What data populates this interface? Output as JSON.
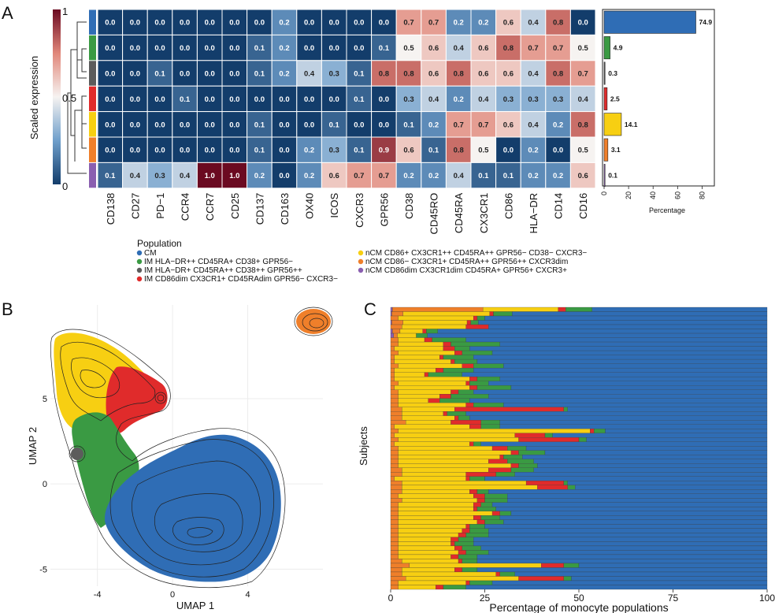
{
  "colors": {
    "CM": "#2f6db5",
    "IM_HLADR_CD45RA": "#3a9a43",
    "IM_HLADR_CD38": "#5c5c5c",
    "IM_CD86dim": "#e02b2b",
    "nCM_CD86": "#f7cf12",
    "nCM_CD86neg": "#ef7f2a",
    "nCM_CD86dim": "#8a5fb0",
    "ramp_low": "#133d6b",
    "ramp_mid": "#f6f3f1",
    "ramp_high": "#6b0a21"
  },
  "panels": {
    "a": "A",
    "b": "B",
    "c": "C"
  },
  "chart_data": [
    {
      "type": "heatmap",
      "title": "",
      "colorbar_label": "Scaled expression",
      "colorbar_ticks": [
        "1",
        "0.5",
        "0"
      ],
      "markers": [
        "CD138",
        "CD27",
        "PD−1",
        "CCR4",
        "CCR7",
        "CD25",
        "CD137",
        "CD163",
        "OX40",
        "ICOS",
        "CXCR3",
        "GPR56",
        "CD38",
        "CD45RO",
        "CD45RA",
        "CX3CR1",
        "CD86",
        "HLA−DR",
        "CD14",
        "CD16"
      ],
      "row_populations": [
        "CM",
        "IM_HLADR_CD45RA",
        "IM_HLADR_CD38",
        "IM_CD86dim",
        "nCM_CD86",
        "nCM_CD86neg",
        "nCM_CD86dim"
      ],
      "values": [
        [
          0.0,
          0.0,
          0.0,
          0.0,
          0.0,
          0.0,
          0.0,
          0.2,
          0.0,
          0.0,
          0.0,
          0.0,
          0.7,
          0.7,
          0.2,
          0.2,
          0.6,
          0.4,
          0.8,
          0.0
        ],
        [
          0.0,
          0.0,
          0.0,
          0.0,
          0.0,
          0.0,
          0.1,
          0.2,
          0.0,
          0.0,
          0.0,
          0.1,
          0.5,
          0.6,
          0.4,
          0.6,
          0.8,
          0.7,
          0.7,
          0.5
        ],
        [
          0.0,
          0.0,
          0.1,
          0.0,
          0.0,
          0.0,
          0.1,
          0.2,
          0.4,
          0.3,
          0.1,
          0.8,
          0.8,
          0.6,
          0.8,
          0.6,
          0.6,
          0.4,
          0.8,
          0.7
        ],
        [
          0.0,
          0.0,
          0.0,
          0.1,
          0.0,
          0.0,
          0.0,
          0.0,
          0.0,
          0.0,
          0.1,
          0.0,
          0.3,
          0.4,
          0.2,
          0.4,
          0.3,
          0.3,
          0.3,
          0.4
        ],
        [
          0.0,
          0.0,
          0.0,
          0.0,
          0.0,
          0.0,
          0.1,
          0.0,
          0.0,
          0.1,
          0.0,
          0.0,
          0.1,
          0.2,
          0.7,
          0.7,
          0.6,
          0.4,
          0.2,
          0.8
        ],
        [
          0.0,
          0.0,
          0.0,
          0.0,
          0.0,
          0.0,
          0.1,
          0.0,
          0.2,
          0.3,
          0.1,
          0.9,
          0.6,
          0.1,
          0.8,
          0.5,
          0.0,
          0.2,
          0.0,
          0.5
        ],
        [
          0.1,
          0.4,
          0.3,
          0.4,
          1.0,
          1.0,
          0.2,
          0.0,
          0.2,
          0.6,
          0.7,
          0.7,
          0.2,
          0.2,
          0.4,
          0.1,
          0.1,
          0.2,
          0.2,
          0.6
        ]
      ],
      "bar_values": [
        74.9,
        4.9,
        0.3,
        2.5,
        14.1,
        3.1,
        0.1
      ],
      "bar_value_labels": [
        "74.9",
        "4.9",
        "0.3",
        "2.5",
        "14.1",
        "3.1",
        "0.1"
      ],
      "bar_xlabel": "Percentage",
      "bar_xlim": [
        0,
        90
      ],
      "bar_ticks": [
        "0",
        "20",
        "40",
        "60",
        "80"
      ]
    },
    {
      "type": "scatter",
      "xlabel": "UMAP 1",
      "ylabel": "UMAP 2",
      "xlim": [
        -6.5,
        8.0
      ],
      "ylim": [
        -6.0,
        10.5
      ],
      "xticks": [
        "-4",
        "0",
        "4"
      ],
      "yticks": [
        "5",
        "0",
        "-5"
      ],
      "grid": true,
      "note": "density contours over cells coloured by population"
    },
    {
      "type": "bar",
      "orientation": "horizontal-stacked",
      "xlabel": "Percentage of monocyte populations",
      "ylabel": "Subjects",
      "xlim": [
        0,
        100
      ],
      "xticks": [
        "0",
        "25",
        "50",
        "75",
        "100"
      ],
      "series_order": [
        "nCM_CD86dim",
        "nCM_CD86neg",
        "nCM_CD86",
        "IM_CD86dim",
        "IM_HLADR_CD38",
        "IM_HLADR_CD45RA",
        "CM"
      ],
      "subjects": [
        [
          0.5,
          24,
          20,
          2,
          0,
          7
        ],
        [
          0.3,
          3,
          23,
          1,
          0,
          5
        ],
        [
          0,
          2,
          20,
          1,
          0,
          2
        ],
        [
          0.3,
          3,
          17,
          1,
          0,
          2
        ],
        [
          0,
          3,
          17,
          6,
          0,
          0
        ],
        [
          0.5,
          2,
          6,
          1,
          0,
          3
        ],
        [
          0.8,
          1,
          5,
          0,
          0,
          3
        ],
        [
          0,
          2,
          7,
          2,
          0,
          9
        ],
        [
          0,
          2,
          12,
          2,
          0,
          13
        ],
        [
          0,
          1,
          13,
          3,
          0,
          4
        ],
        [
          0,
          2,
          15,
          2,
          0,
          8
        ],
        [
          0,
          1,
          12,
          1,
          0,
          8
        ],
        [
          0,
          1,
          15,
          1,
          0,
          6
        ],
        [
          0,
          2,
          17,
          3,
          0,
          8
        ],
        [
          0,
          1,
          11,
          2,
          0,
          8
        ],
        [
          0,
          1,
          8,
          1,
          0,
          9
        ],
        [
          0,
          1,
          20,
          2,
          0,
          6
        ],
        [
          0,
          2,
          18,
          1,
          0,
          5
        ],
        [
          0,
          1,
          20,
          2,
          0,
          9
        ],
        [
          0,
          2,
          14,
          2,
          0,
          4
        ],
        [
          0,
          2,
          11,
          3,
          0,
          10
        ],
        [
          0,
          2,
          8,
          3,
          0,
          8
        ],
        [
          0,
          2,
          18,
          2,
          0,
          8
        ],
        [
          0,
          3,
          14,
          29,
          0,
          1
        ],
        [
          0,
          3,
          11,
          1,
          0,
          5
        ],
        [
          0,
          3,
          14,
          1,
          0,
          3
        ],
        [
          0,
          4,
          12,
          8,
          0,
          5
        ],
        [
          0,
          1,
          20,
          3,
          0,
          5
        ],
        [
          0,
          2,
          51,
          1,
          0,
          3
        ],
        [
          0,
          1,
          32,
          8,
          0,
          2
        ],
        [
          0,
          2,
          32,
          16,
          0,
          2
        ],
        [
          0,
          1,
          20,
          1,
          0,
          2
        ],
        [
          0,
          2,
          25,
          4,
          0,
          5
        ],
        [
          0,
          2,
          30,
          2,
          0,
          7
        ],
        [
          0,
          2,
          27,
          1,
          0,
          5
        ],
        [
          0,
          2,
          24,
          5,
          0,
          7
        ],
        [
          0,
          2,
          30,
          2,
          0,
          5
        ],
        [
          0,
          3,
          23,
          6,
          0,
          6
        ],
        [
          0,
          3,
          17,
          8,
          0,
          5
        ],
        [
          0,
          1,
          19,
          1,
          0,
          4
        ],
        [
          0,
          3,
          33,
          10,
          0,
          1
        ],
        [
          0,
          3,
          36,
          8,
          0,
          2
        ],
        [
          0,
          3,
          18,
          2,
          0,
          3
        ],
        [
          0,
          2,
          20,
          3,
          0,
          6
        ],
        [
          0,
          3,
          20,
          2,
          0,
          6
        ],
        [
          0,
          2,
          20,
          2,
          0,
          3
        ],
        [
          0,
          2,
          20,
          1,
          0,
          5
        ],
        [
          0,
          2,
          25,
          2,
          0,
          3
        ],
        [
          0,
          2,
          20,
          2,
          0,
          5
        ],
        [
          0,
          2,
          21,
          2,
          0,
          5
        ],
        [
          0,
          2,
          18,
          1,
          0,
          4
        ],
        [
          0,
          2,
          17,
          2,
          0,
          5
        ],
        [
          0,
          2,
          16,
          2,
          0,
          6
        ],
        [
          0,
          2,
          14,
          2,
          0,
          4
        ],
        [
          0,
          2,
          14,
          1,
          0,
          5
        ],
        [
          0,
          2,
          15,
          2,
          0,
          5
        ],
        [
          0,
          2,
          16,
          2,
          0,
          6
        ],
        [
          0,
          2,
          14,
          2,
          0,
          5
        ],
        [
          0,
          3,
          15,
          1,
          0,
          4
        ],
        [
          0,
          5,
          35,
          6,
          0,
          4
        ],
        [
          0,
          3,
          14,
          2,
          0,
          4
        ],
        [
          0,
          3,
          25,
          1,
          0,
          4
        ],
        [
          0,
          4,
          30,
          12,
          0,
          2
        ],
        [
          0,
          2,
          18,
          1,
          0,
          6
        ],
        [
          0,
          2,
          10,
          2,
          0,
          6
        ]
      ]
    }
  ],
  "legend": {
    "title": "Population",
    "items": [
      {
        "key": "CM",
        "label": "CM"
      },
      {
        "key": "IM_HLADR_CD45RA",
        "label": "IM HLA−DR++ CD45RA+ CD38+ GPR56−"
      },
      {
        "key": "IM_HLADR_CD38",
        "label": "IM HLA−DR+ CD45RA++ CD38++ GPR56++"
      },
      {
        "key": "IM_CD86dim",
        "label": "IM CD86dim CX3CR1+ CD45RAdim GPR56− CXCR3−"
      },
      {
        "key": "nCM_CD86",
        "label": "nCM CD86+ CX3CR1++ CD45RA++ GPR56− CD38− CXCR3−"
      },
      {
        "key": "nCM_CD86neg",
        "label": "nCM CD86− CX3CR1+ CD45RA++ GPR56++ CXCR3dim"
      },
      {
        "key": "nCM_CD86dim",
        "label": "nCM CD86dim CX3CR1dim CD45RA+ GPR56+ CXCR3+"
      }
    ]
  }
}
